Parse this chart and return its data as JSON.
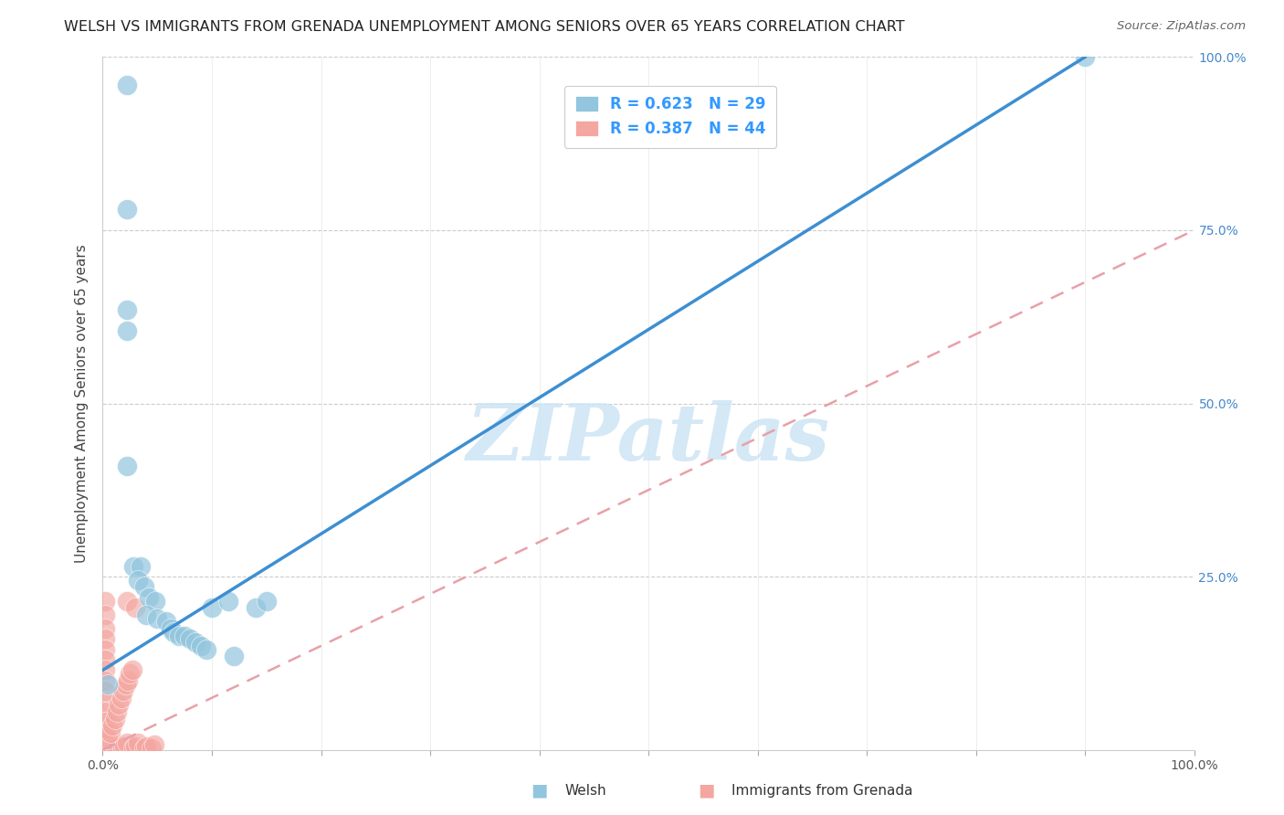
{
  "title": "WELSH VS IMMIGRANTS FROM GRENADA UNEMPLOYMENT AMONG SENIORS OVER 65 YEARS CORRELATION CHART",
  "source": "Source: ZipAtlas.com",
  "ylabel": "Unemployment Among Seniors over 65 years",
  "xlim": [
    0,
    1.0
  ],
  "ylim": [
    0,
    1.0
  ],
  "welsh_color": "#92c5de",
  "grenada_color": "#f4a6a0",
  "welsh_R": 0.623,
  "welsh_N": 29,
  "grenada_R": 0.387,
  "grenada_N": 44,
  "welsh_line_color": "#3d8fd1",
  "grenada_line_color": "#e8a0a8",
  "watermark": "ZIPatlas",
  "background_color": "#ffffff",
  "welsh_line_x0": 0.0,
  "welsh_line_y0": 0.115,
  "welsh_line_x1": 0.9,
  "welsh_line_y1": 1.0,
  "grenada_line_x0": 0.0,
  "grenada_line_y0": 0.0,
  "grenada_line_x1": 1.0,
  "grenada_line_y1": 0.75,
  "welsh_scatter": [
    [
      0.022,
      0.96
    ],
    [
      0.022,
      0.78
    ],
    [
      0.022,
      0.635
    ],
    [
      0.022,
      0.605
    ],
    [
      0.022,
      0.41
    ],
    [
      0.028,
      0.265
    ],
    [
      0.035,
      0.265
    ],
    [
      0.032,
      0.245
    ],
    [
      0.038,
      0.235
    ],
    [
      0.042,
      0.22
    ],
    [
      0.048,
      0.215
    ],
    [
      0.04,
      0.195
    ],
    [
      0.05,
      0.19
    ],
    [
      0.058,
      0.185
    ],
    [
      0.062,
      0.175
    ],
    [
      0.065,
      0.17
    ],
    [
      0.07,
      0.165
    ],
    [
      0.075,
      0.165
    ],
    [
      0.08,
      0.16
    ],
    [
      0.085,
      0.155
    ],
    [
      0.09,
      0.15
    ],
    [
      0.095,
      0.145
    ],
    [
      0.1,
      0.205
    ],
    [
      0.115,
      0.215
    ],
    [
      0.12,
      0.135
    ],
    [
      0.14,
      0.205
    ],
    [
      0.15,
      0.215
    ],
    [
      0.9,
      1.0
    ],
    [
      0.005,
      0.095
    ]
  ],
  "grenada_scatter": [
    [
      0.002,
      0.215
    ],
    [
      0.002,
      0.195
    ],
    [
      0.002,
      0.175
    ],
    [
      0.002,
      0.16
    ],
    [
      0.002,
      0.145
    ],
    [
      0.002,
      0.13
    ],
    [
      0.002,
      0.115
    ],
    [
      0.002,
      0.1
    ],
    [
      0.002,
      0.085
    ],
    [
      0.002,
      0.07
    ],
    [
      0.002,
      0.055
    ],
    [
      0.002,
      0.04
    ],
    [
      0.002,
      0.025
    ],
    [
      0.002,
      0.012
    ],
    [
      0.002,
      0.002
    ],
    [
      0.004,
      0.002
    ],
    [
      0.006,
      0.002
    ],
    [
      0.008,
      0.002
    ],
    [
      0.01,
      0.002
    ],
    [
      0.012,
      0.002
    ],
    [
      0.005,
      0.015
    ],
    [
      0.007,
      0.025
    ],
    [
      0.009,
      0.035
    ],
    [
      0.011,
      0.045
    ],
    [
      0.013,
      0.055
    ],
    [
      0.015,
      0.065
    ],
    [
      0.017,
      0.075
    ],
    [
      0.019,
      0.085
    ],
    [
      0.021,
      0.095
    ],
    [
      0.023,
      0.1
    ],
    [
      0.025,
      0.11
    ],
    [
      0.027,
      0.115
    ],
    [
      0.018,
      0.002
    ],
    [
      0.02,
      0.005
    ],
    [
      0.022,
      0.01
    ],
    [
      0.022,
      0.215
    ],
    [
      0.028,
      0.002
    ],
    [
      0.03,
      0.005
    ],
    [
      0.032,
      0.01
    ],
    [
      0.03,
      0.205
    ],
    [
      0.038,
      0.002
    ],
    [
      0.04,
      0.005
    ],
    [
      0.045,
      0.002
    ],
    [
      0.047,
      0.008
    ]
  ]
}
